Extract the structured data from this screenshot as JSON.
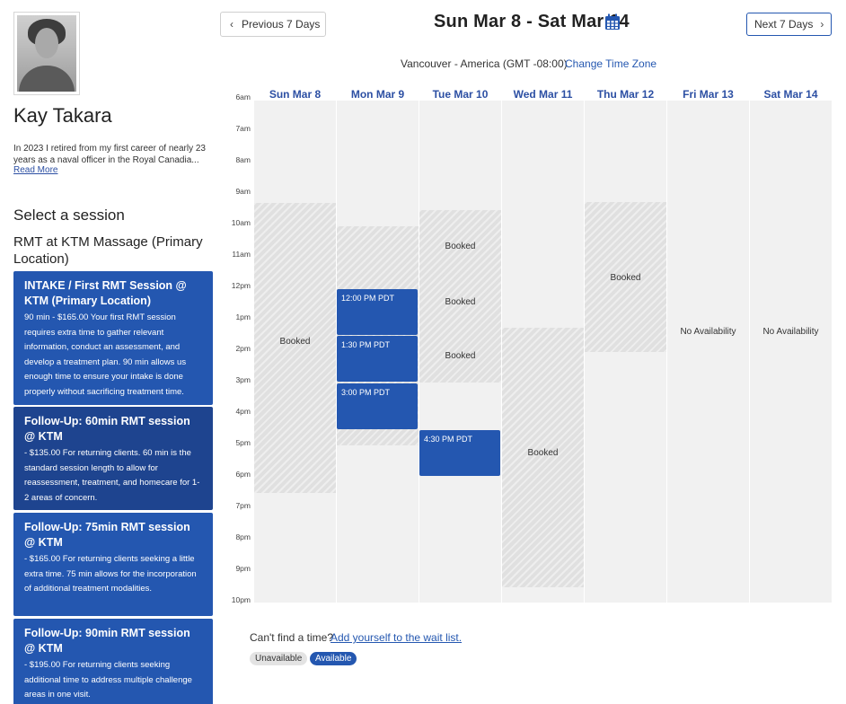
{
  "profile": {
    "name": "Kay Takara",
    "bio": "In 2023 I retired from my first career of nearly 23 years as a naval officer in the Royal Canadia...",
    "read_more": "Read More"
  },
  "booking": {
    "select_title": "Select a session",
    "service_title": "RMT at KTM Massage (Primary Location)",
    "sessions": [
      {
        "title": "INTAKE / First RMT Session @ KTM (Primary Location)",
        "price": "90 min - $165.00",
        "desc": "Your first RMT session requires extra time to gather relevant information, conduct an assessment, and develop a treatment plan. 90 min allows us enough time to ensure your intake is done properly without sacrificing treatment time."
      },
      {
        "title": "Follow-Up: 60min RMT session @ KTM",
        "price": "- $135.00",
        "desc": "For returning clients. 60 min is the standard session length to allow for reassessment, treatment, and homecare for 1-2 areas of concern."
      },
      {
        "title": "Follow-Up: 75min RMT session @ KTM",
        "price": "- $165.00",
        "desc": "For returning clients seeking a little extra time. 75 min allows for the incorporation of additional treatment modalities."
      },
      {
        "title": "Follow-Up: 90min RMT session @ KTM",
        "price": "- $195.00",
        "desc": "For returning clients seeking additional time to address multiple challenge areas in one visit."
      }
    ]
  },
  "nav": {
    "prev_label": "Previous 7 Days",
    "next_label": "Next 7 Days",
    "range_title": "Sun Mar 8 - Sat Mar 14",
    "tz_label": "Vancouver - America (GMT -08:00)",
    "tz_link": "Change Time Zone"
  },
  "calendar": {
    "days": [
      "Sun Mar 8",
      "Mon Mar 9",
      "Tue Mar 10",
      "Wed Mar 11",
      "Thu Mar 12",
      "Fri Mar 13",
      "Sat Mar 14"
    ],
    "hours": [
      "6am",
      "7am",
      "8am",
      "9am",
      "10am",
      "11am",
      "12pm",
      "1pm",
      "2pm",
      "3pm",
      "4pm",
      "5pm",
      "6pm",
      "7pm",
      "8pm",
      "9pm",
      "10pm"
    ],
    "booked_label": "Booked",
    "no_availability": "No Availability",
    "slots": {
      "mon_1": "12:00 PM PDT",
      "mon_2": "1:30 PM PDT",
      "mon_3": "3:00 PM PDT",
      "tue_1": "4:30 PM PDT"
    }
  },
  "footer": {
    "wait_text": "Can't find a time?",
    "wait_link": "Add yourself to the wait list.",
    "legend_unavailable": "Unavailable",
    "legend_available": "Available"
  },
  "colors": {
    "accent": "#2457b0",
    "accent_dark": "#1e448f",
    "booked_fill": "#e0e0e0",
    "column_bg": "#f1f1f1"
  }
}
